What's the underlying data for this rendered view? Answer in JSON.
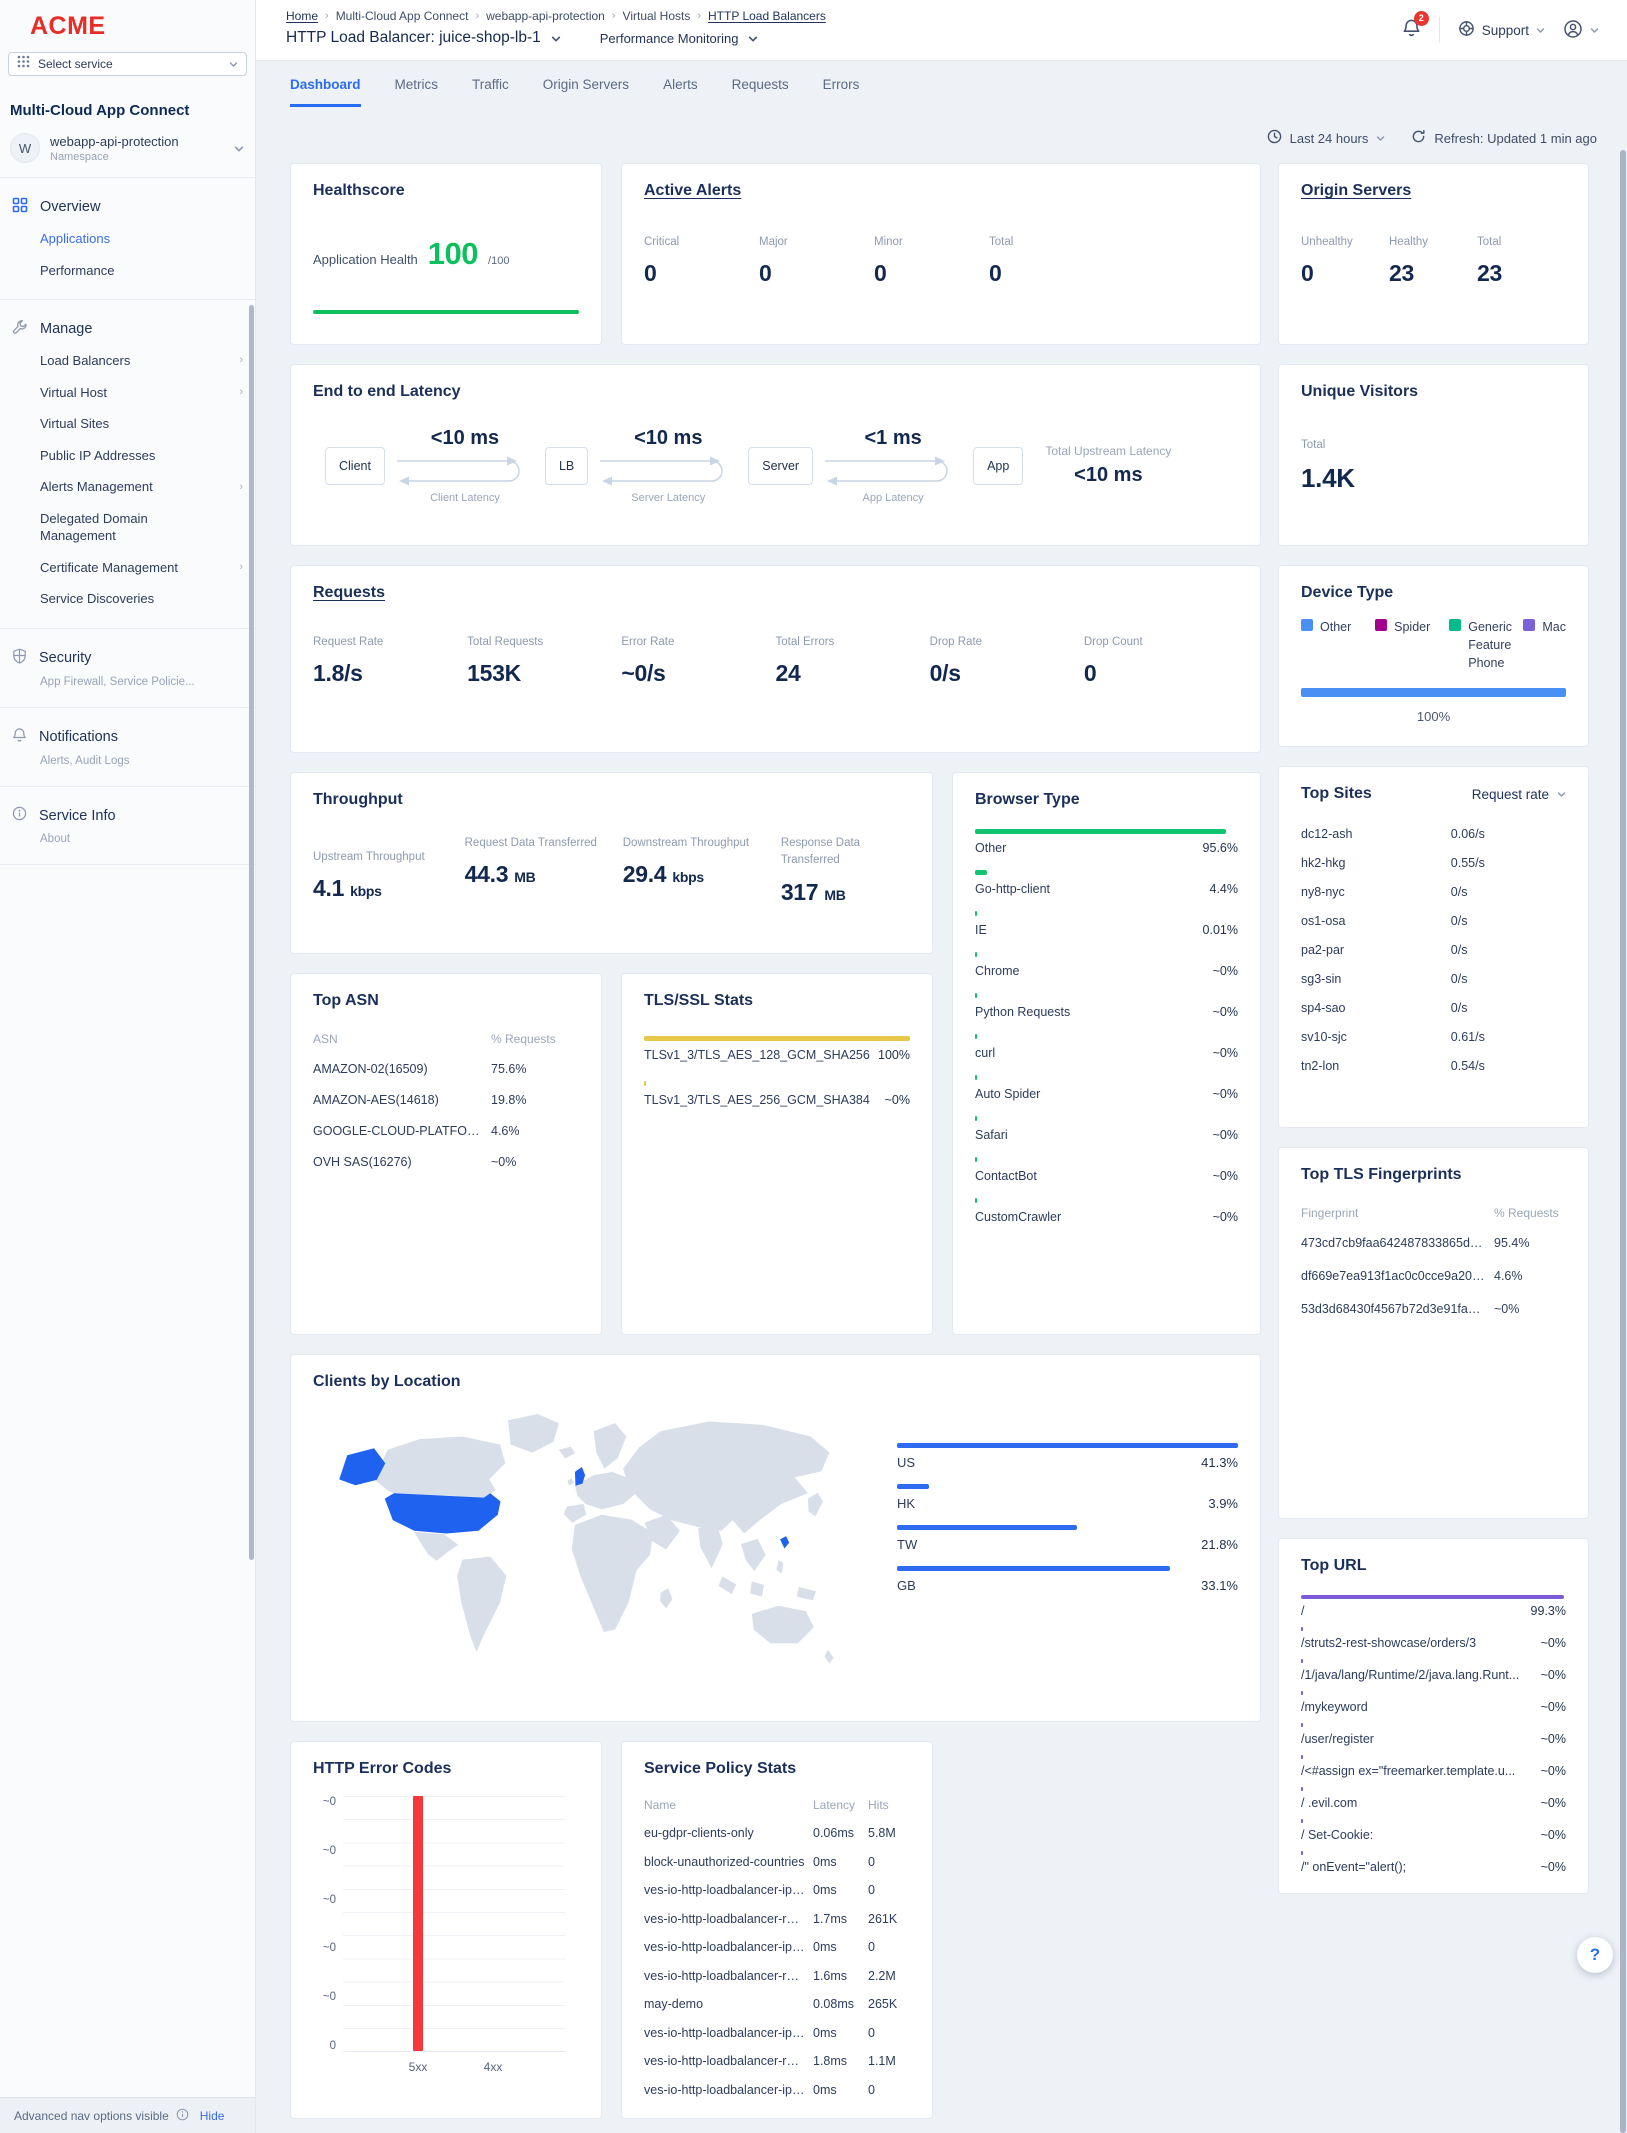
{
  "brand": {
    "logo": "ACME",
    "select_service": "Select service"
  },
  "header": {
    "breadcrumbs": [
      "Home",
      "Multi-Cloud App Connect",
      "webapp-api-protection",
      "Virtual Hosts",
      "HTTP Load Balancers"
    ],
    "title": "HTTP Load Balancer: juice-shop-lb-1",
    "subtitle": "Performance Monitoring",
    "notification_count": "2",
    "support_label": "Support"
  },
  "sidebar": {
    "product": "Multi-Cloud App Connect",
    "namespace": {
      "initial": "W",
      "name": "webapp-api-protection",
      "type": "Namespace"
    },
    "overview": {
      "label": "Overview",
      "items": [
        "Applications",
        "Performance"
      ]
    },
    "manage": {
      "label": "Manage",
      "items": [
        "Load Balancers",
        "Virtual Host",
        "Virtual Sites",
        "Public IP Addresses",
        "Alerts Management",
        "Delegated Domain Management",
        "Certificate Management",
        "Service Discoveries"
      ]
    },
    "security": {
      "label": "Security",
      "sub": "App Firewall, Service Policie..."
    },
    "notifications": {
      "label": "Notifications",
      "sub": "Alerts, Audit Logs"
    },
    "service_info": {
      "label": "Service Info",
      "sub": "About"
    },
    "footer": {
      "text": "Advanced nav options visible",
      "action": "Hide"
    }
  },
  "tabs": [
    "Dashboard",
    "Metrics",
    "Traffic",
    "Origin Servers",
    "Alerts",
    "Requests",
    "Errors"
  ],
  "controls": {
    "time_range": "Last 24 hours",
    "refresh": "Refresh: Updated 1 min ago"
  },
  "healthscore": {
    "title": "Healthscore",
    "label": "Application Health",
    "value": "100",
    "denominator": "/100",
    "bar_color": "#0cc05e"
  },
  "active_alerts": {
    "title": "Active Alerts",
    "stats": [
      {
        "label": "Critical",
        "value": "0"
      },
      {
        "label": "Major",
        "value": "0"
      },
      {
        "label": "Minor",
        "value": "0"
      },
      {
        "label": "Total",
        "value": "0"
      }
    ]
  },
  "origin_servers": {
    "title": "Origin Servers",
    "stats": [
      {
        "label": "Unhealthy",
        "value": "0"
      },
      {
        "label": "Healthy",
        "value": "23"
      },
      {
        "label": "Total",
        "value": "23"
      }
    ]
  },
  "latency": {
    "title": "End to end Latency",
    "nodes": [
      "Client",
      "LB",
      "Server",
      "App"
    ],
    "hops": [
      {
        "value": "<10 ms",
        "label": "Client Latency"
      },
      {
        "value": "<10 ms",
        "label": "Server Latency"
      },
      {
        "value": "<1 ms",
        "label": "App Latency"
      }
    ],
    "total_label": "Total Upstream Latency",
    "total_value": "<10 ms"
  },
  "unique_visitors": {
    "title": "Unique Visitors",
    "label": "Total",
    "value": "1.4K"
  },
  "requests": {
    "title": "Requests",
    "stats": [
      {
        "label": "Request Rate",
        "value": "1.8/s"
      },
      {
        "label": "Total Requests",
        "value": "153K"
      },
      {
        "label": "Error Rate",
        "value": "~0/s"
      },
      {
        "label": "Total Errors",
        "value": "24"
      },
      {
        "label": "Drop Rate",
        "value": "0/s"
      },
      {
        "label": "Drop Count",
        "value": "0"
      }
    ]
  },
  "device_type": {
    "title": "Device Type",
    "legend": [
      {
        "label": "Other",
        "color": "#4a90f4"
      },
      {
        "label": "Spider",
        "color": "#a2008f"
      },
      {
        "label": "Generic Feature Phone",
        "color": "#00bc8a"
      },
      {
        "label": "Mac",
        "color": "#7b61d6"
      }
    ],
    "bar_color": "#4a90f4",
    "bar_pct": 100,
    "bar_label": "100%"
  },
  "throughput": {
    "title": "Throughput",
    "stats": [
      {
        "label": "Upstream Throughput",
        "value": "4.1",
        "unit": "kbps"
      },
      {
        "label": "Request Data Transferred",
        "value": "44.3",
        "unit": "MB"
      },
      {
        "label": "Downstream Throughput",
        "value": "29.4",
        "unit": "kbps"
      },
      {
        "label": "Response Data Transferred",
        "value": "317",
        "unit": "MB"
      }
    ]
  },
  "browser_type": {
    "title": "Browser Type",
    "bar_color": "#10c46f",
    "rows": [
      {
        "label": "Other",
        "value": "95.6%",
        "pct": 95.6
      },
      {
        "label": "Go-http-client",
        "value": "4.4%",
        "pct": 4.4
      },
      {
        "label": "IE",
        "value": "0.01%",
        "pct": 0.4
      },
      {
        "label": "Chrome",
        "value": "~0%",
        "pct": 0.4
      },
      {
        "label": "Python Requests",
        "value": "~0%",
        "pct": 0.4
      },
      {
        "label": "curl",
        "value": "~0%",
        "pct": 0.4
      },
      {
        "label": "Auto Spider",
        "value": "~0%",
        "pct": 0.4
      },
      {
        "label": "Safari",
        "value": "~0%",
        "pct": 0.4
      },
      {
        "label": "ContactBot",
        "value": "~0%",
        "pct": 0.4
      },
      {
        "label": "CustomCrawler",
        "value": "~0%",
        "pct": 0.4
      }
    ]
  },
  "top_sites": {
    "title": "Top Sites",
    "sort_label": "Request rate",
    "rows": [
      {
        "label": "dc12-ash",
        "value": "0.06/s"
      },
      {
        "label": "hk2-hkg",
        "value": "0.55/s"
      },
      {
        "label": "ny8-nyc",
        "value": "0/s"
      },
      {
        "label": "os1-osa",
        "value": "0/s"
      },
      {
        "label": "pa2-par",
        "value": "0/s"
      },
      {
        "label": "sg3-sin",
        "value": "0/s"
      },
      {
        "label": "sp4-sao",
        "value": "0/s"
      },
      {
        "label": "sv10-sjc",
        "value": "0.61/s"
      },
      {
        "label": "tn2-lon",
        "value": "0.54/s"
      }
    ]
  },
  "top_asn": {
    "title": "Top ASN",
    "col1": "ASN",
    "col2": "% Requests",
    "rows": [
      {
        "label": "AMAZON-02(16509)",
        "value": "75.6%"
      },
      {
        "label": "AMAZON-AES(14618)",
        "value": "19.8%"
      },
      {
        "label": "GOOGLE-CLOUD-PLATFORM(3969...",
        "value": "4.6%"
      },
      {
        "label": "OVH SAS(16276)",
        "value": "~0%"
      }
    ]
  },
  "tls_stats": {
    "title": "TLS/SSL Stats",
    "bar_color": "#e7c84b",
    "rows": [
      {
        "label": "TLSv1_3/TLS_AES_128_GCM_SHA256",
        "value": "100%",
        "pct": 100
      },
      {
        "label": "TLSv1_3/TLS_AES_256_GCM_SHA384",
        "value": "~0%",
        "pct": 0.4
      }
    ]
  },
  "top_tls_fingerprints": {
    "title": "Top TLS Fingerprints",
    "col1": "Fingerprint",
    "col2": "% Requests",
    "rows": [
      {
        "label": "473cd7cb9faa642487833865d516...",
        "value": "95.4%"
      },
      {
        "label": "df669e7ea913f1ac0c0cce9a201a2...",
        "value": "4.6%"
      },
      {
        "label": "53d3d68430f4567b72d3e91fa8ce...",
        "value": "~0%"
      }
    ]
  },
  "clients_by_location": {
    "title": "Clients by Location",
    "bar_color": "#2f6bf0",
    "map_base_color": "#d8dfe9",
    "map_highlight_color": "#1f62f0",
    "rows": [
      {
        "label": "US",
        "value": "41.3%",
        "pct": 41.3
      },
      {
        "label": "HK",
        "value": "3.9%",
        "pct": 3.9
      },
      {
        "label": "TW",
        "value": "21.8%",
        "pct": 21.8
      },
      {
        "label": "GB",
        "value": "33.1%",
        "pct": 33.1
      }
    ]
  },
  "top_url": {
    "title": "Top URL",
    "bar_color": "#7c5cd6",
    "rows": [
      {
        "label": "/",
        "value": "99.3%",
        "pct": 99.3
      },
      {
        "label": "/struts2-rest-showcase/orders/3",
        "value": "~0%",
        "pct": 0.4
      },
      {
        "label": "/1/java/lang/Runtime/2/java.lang.Runt...",
        "value": "~0%",
        "pct": 0.4
      },
      {
        "label": "/mykeyword",
        "value": "~0%",
        "pct": 0.4
      },
      {
        "label": "/user/register",
        "value": "~0%",
        "pct": 0.4
      },
      {
        "label": "/<#assign ex=\"freemarker.template.u...",
        "value": "~0%",
        "pct": 0.4
      },
      {
        "label": "/ .evil.com",
        "value": "~0%",
        "pct": 0.4
      },
      {
        "label": "/ Set-Cookie:",
        "value": "~0%",
        "pct": 0.4
      },
      {
        "label": "/\" onEvent=\"alert();",
        "value": "~0%",
        "pct": 0.4
      }
    ]
  },
  "http_error_codes": {
    "title": "HTTP Error Codes",
    "type": "bar",
    "y_labels": [
      "~0",
      "~0",
      "~0",
      "~0",
      "~0",
      "0"
    ],
    "categories": [
      "5xx",
      "4xx"
    ],
    "bars": [
      {
        "category": "5xx",
        "height_pct": 100,
        "color": "#f5383b"
      },
      {
        "category": "4xx",
        "height_pct": 0,
        "color": "#f5383b"
      }
    ]
  },
  "service_policy_stats": {
    "title": "Service Policy Stats",
    "columns": [
      "Name",
      "Latency",
      "Hits"
    ],
    "rows": [
      {
        "name": "eu-gdpr-clients-only",
        "latency": "0.06ms",
        "hits": "5.8M"
      },
      {
        "name": "block-unauthorized-countries",
        "latency": "0ms",
        "hits": "0"
      },
      {
        "name": "ves-io-http-loadbalancer-ip-rep...",
        "latency": "0ms",
        "hits": "0"
      },
      {
        "name": "ves-io-http-loadbalancer-rate-li...",
        "latency": "1.7ms",
        "hits": "261K"
      },
      {
        "name": "ves-io-http-loadbalancer-ip-rep...",
        "latency": "0ms",
        "hits": "0"
      },
      {
        "name": "ves-io-http-loadbalancer-rate-li...",
        "latency": "1.6ms",
        "hits": "2.2M"
      },
      {
        "name": "may-demo",
        "latency": "0.08ms",
        "hits": "265K"
      },
      {
        "name": "ves-io-http-loadbalancer-ip-rep...",
        "latency": "0ms",
        "hits": "0"
      },
      {
        "name": "ves-io-http-loadbalancer-rate-li...",
        "latency": "1.8ms",
        "hits": "1.1M"
      },
      {
        "name": "ves-io-http-loadbalancer-ip-rep...",
        "latency": "0ms",
        "hits": "0"
      }
    ]
  },
  "help_label": "?"
}
